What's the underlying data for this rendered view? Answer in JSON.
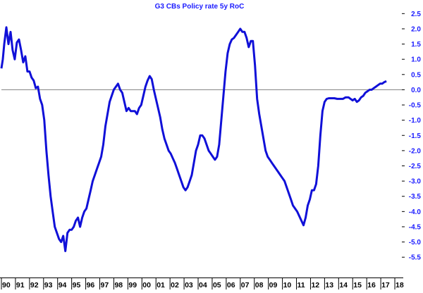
{
  "chart_data": {
    "type": "line",
    "title": "G3 CBs Policy rate 5y RoC",
    "xlabel": "",
    "ylabel": "",
    "xlim": [
      1990,
      2018.5
    ],
    "ylim": [
      -5.75,
      2.6
    ],
    "grid": false,
    "zero_line": true,
    "colors": {
      "line": "#1010d8",
      "title": "#1a1aff",
      "yticks": "#1a1aff",
      "xticks": "#000000",
      "zero_line": "#808080"
    },
    "y_ticks": [
      2.5,
      2.0,
      1.5,
      1.0,
      0.5,
      0.0,
      -0.5,
      -1.0,
      -1.5,
      -2.0,
      -2.5,
      -3.0,
      -3.5,
      -4.0,
      -4.5,
      -5.0,
      -5.5
    ],
    "y_tick_labels": [
      "2.5",
      "2.0",
      "1.5",
      "1.0",
      "0.5",
      "0.0",
      "-0.5",
      "-1.0",
      "-1.5",
      "-2.0",
      "-2.5",
      "-3.0",
      "-3.5",
      "-4.0",
      "-4.5",
      "-5.0",
      "-5.5"
    ],
    "x_ticks": [
      {
        "x": 1990,
        "label": "90"
      },
      {
        "x": 1991,
        "label": "91"
      },
      {
        "x": 1992,
        "label": "92"
      },
      {
        "x": 1993,
        "label": "93"
      },
      {
        "x": 1994,
        "label": "94"
      },
      {
        "x": 1995,
        "label": "95"
      },
      {
        "x": 1996,
        "label": "96"
      },
      {
        "x": 1997,
        "label": "97"
      },
      {
        "x": 1998,
        "label": "98"
      },
      {
        "x": 1999,
        "label": "99"
      },
      {
        "x": 2000,
        "label": "00"
      },
      {
        "x": 2001,
        "label": "01"
      },
      {
        "x": 2002,
        "label": "02"
      },
      {
        "x": 2003,
        "label": "03"
      },
      {
        "x": 2004,
        "label": "04"
      },
      {
        "x": 2005,
        "label": "05"
      },
      {
        "x": 2006,
        "label": "06"
      },
      {
        "x": 2007,
        "label": "07"
      },
      {
        "x": 2008,
        "label": "08"
      },
      {
        "x": 2009,
        "label": "09"
      },
      {
        "x": 2010,
        "label": "10"
      },
      {
        "x": 2011,
        "label": "11"
      },
      {
        "x": 2012,
        "label": "12"
      },
      {
        "x": 2013,
        "label": "13"
      },
      {
        "x": 2014,
        "label": "14"
      },
      {
        "x": 2015,
        "label": "15"
      },
      {
        "x": 2016,
        "label": "16"
      },
      {
        "x": 2017,
        "label": "17"
      },
      {
        "x": 2018,
        "label": "18"
      }
    ],
    "series": [
      {
        "points": [
          [
            1990.0,
            0.7
          ],
          [
            1990.1,
            1.0
          ],
          [
            1990.2,
            1.5
          ],
          [
            1990.35,
            2.05
          ],
          [
            1990.5,
            1.5
          ],
          [
            1990.65,
            1.9
          ],
          [
            1990.8,
            1.3
          ],
          [
            1990.95,
            1.0
          ],
          [
            1991.1,
            1.55
          ],
          [
            1991.25,
            1.65
          ],
          [
            1991.4,
            1.3
          ],
          [
            1991.55,
            0.9
          ],
          [
            1991.7,
            1.1
          ],
          [
            1991.85,
            0.6
          ],
          [
            1992.0,
            0.6
          ],
          [
            1992.15,
            0.4
          ],
          [
            1992.3,
            0.3
          ],
          [
            1992.45,
            0.05
          ],
          [
            1992.6,
            0.1
          ],
          [
            1992.75,
            -0.3
          ],
          [
            1992.9,
            -0.5
          ],
          [
            1993.05,
            -1.0
          ],
          [
            1993.2,
            -2.0
          ],
          [
            1993.35,
            -2.8
          ],
          [
            1993.5,
            -3.5
          ],
          [
            1993.65,
            -4.0
          ],
          [
            1993.8,
            -4.5
          ],
          [
            1993.95,
            -4.7
          ],
          [
            1994.1,
            -4.9
          ],
          [
            1994.25,
            -5.0
          ],
          [
            1994.4,
            -4.8
          ],
          [
            1994.55,
            -5.3
          ],
          [
            1994.7,
            -4.7
          ],
          [
            1994.85,
            -4.6
          ],
          [
            1995.0,
            -4.6
          ],
          [
            1995.15,
            -4.5
          ],
          [
            1995.3,
            -4.3
          ],
          [
            1995.45,
            -4.2
          ],
          [
            1995.6,
            -4.5
          ],
          [
            1995.75,
            -4.2
          ],
          [
            1995.9,
            -4.0
          ],
          [
            1996.05,
            -3.9
          ],
          [
            1996.2,
            -3.6
          ],
          [
            1996.35,
            -3.3
          ],
          [
            1996.5,
            -3.0
          ],
          [
            1996.65,
            -2.8
          ],
          [
            1996.8,
            -2.6
          ],
          [
            1996.95,
            -2.4
          ],
          [
            1997.1,
            -2.2
          ],
          [
            1997.25,
            -1.8
          ],
          [
            1997.4,
            -1.2
          ],
          [
            1997.55,
            -0.8
          ],
          [
            1997.7,
            -0.4
          ],
          [
            1997.85,
            -0.2
          ],
          [
            1998.0,
            0.0
          ],
          [
            1998.15,
            0.1
          ],
          [
            1998.3,
            0.2
          ],
          [
            1998.45,
            0.0
          ],
          [
            1998.6,
            -0.1
          ],
          [
            1998.75,
            -0.4
          ],
          [
            1998.9,
            -0.7
          ],
          [
            1999.05,
            -0.6
          ],
          [
            1999.2,
            -0.7
          ],
          [
            1999.35,
            -0.7
          ],
          [
            1999.5,
            -0.7
          ],
          [
            1999.65,
            -0.8
          ],
          [
            1999.8,
            -0.6
          ],
          [
            1999.95,
            -0.5
          ],
          [
            2000.1,
            -0.2
          ],
          [
            2000.25,
            0.1
          ],
          [
            2000.4,
            0.3
          ],
          [
            2000.55,
            0.45
          ],
          [
            2000.7,
            0.35
          ],
          [
            2000.85,
            0.0
          ],
          [
            2001.0,
            -0.3
          ],
          [
            2001.15,
            -0.6
          ],
          [
            2001.3,
            -0.9
          ],
          [
            2001.45,
            -1.3
          ],
          [
            2001.6,
            -1.6
          ],
          [
            2001.75,
            -1.8
          ],
          [
            2001.9,
            -2.0
          ],
          [
            2002.05,
            -2.1
          ],
          [
            2002.2,
            -2.25
          ],
          [
            2002.35,
            -2.4
          ],
          [
            2002.5,
            -2.6
          ],
          [
            2002.65,
            -2.8
          ],
          [
            2002.8,
            -3.0
          ],
          [
            2002.95,
            -3.2
          ],
          [
            2003.1,
            -3.3
          ],
          [
            2003.25,
            -3.2
          ],
          [
            2003.4,
            -3.0
          ],
          [
            2003.55,
            -2.8
          ],
          [
            2003.7,
            -2.4
          ],
          [
            2003.85,
            -2.0
          ],
          [
            2004.0,
            -1.8
          ],
          [
            2004.15,
            -1.5
          ],
          [
            2004.3,
            -1.5
          ],
          [
            2004.45,
            -1.6
          ],
          [
            2004.6,
            -1.8
          ],
          [
            2004.75,
            -2.0
          ],
          [
            2004.9,
            -2.1
          ],
          [
            2005.05,
            -2.2
          ],
          [
            2005.2,
            -2.3
          ],
          [
            2005.35,
            -2.2
          ],
          [
            2005.5,
            -1.8
          ],
          [
            2005.65,
            -1.0
          ],
          [
            2005.8,
            -0.2
          ],
          [
            2005.95,
            0.6
          ],
          [
            2006.1,
            1.2
          ],
          [
            2006.25,
            1.5
          ],
          [
            2006.4,
            1.65
          ],
          [
            2006.55,
            1.7
          ],
          [
            2006.7,
            1.8
          ],
          [
            2006.85,
            1.9
          ],
          [
            2007.0,
            2.0
          ],
          [
            2007.15,
            1.9
          ],
          [
            2007.3,
            1.9
          ],
          [
            2007.45,
            1.7
          ],
          [
            2007.6,
            1.4
          ],
          [
            2007.75,
            1.6
          ],
          [
            2007.9,
            1.6
          ],
          [
            2008.05,
            0.8
          ],
          [
            2008.2,
            -0.3
          ],
          [
            2008.35,
            -0.8
          ],
          [
            2008.5,
            -1.2
          ],
          [
            2008.65,
            -1.6
          ],
          [
            2008.8,
            -2.0
          ],
          [
            2008.95,
            -2.2
          ],
          [
            2009.1,
            -2.3
          ],
          [
            2009.25,
            -2.4
          ],
          [
            2009.4,
            -2.5
          ],
          [
            2009.55,
            -2.6
          ],
          [
            2009.7,
            -2.7
          ],
          [
            2009.85,
            -2.8
          ],
          [
            2010.0,
            -2.9
          ],
          [
            2010.15,
            -3.0
          ],
          [
            2010.3,
            -3.2
          ],
          [
            2010.45,
            -3.4
          ],
          [
            2010.6,
            -3.6
          ],
          [
            2010.75,
            -3.8
          ],
          [
            2010.9,
            -3.9
          ],
          [
            2011.05,
            -4.0
          ],
          [
            2011.2,
            -4.15
          ],
          [
            2011.35,
            -4.3
          ],
          [
            2011.5,
            -4.45
          ],
          [
            2011.65,
            -4.2
          ],
          [
            2011.8,
            -3.8
          ],
          [
            2011.95,
            -3.6
          ],
          [
            2012.1,
            -3.3
          ],
          [
            2012.25,
            -3.3
          ],
          [
            2012.4,
            -3.1
          ],
          [
            2012.55,
            -2.5
          ],
          [
            2012.7,
            -1.5
          ],
          [
            2012.85,
            -0.7
          ],
          [
            2013.0,
            -0.4
          ],
          [
            2013.15,
            -0.3
          ],
          [
            2013.3,
            -0.28
          ],
          [
            2013.5,
            -0.28
          ],
          [
            2013.7,
            -0.28
          ],
          [
            2013.9,
            -0.3
          ],
          [
            2014.1,
            -0.3
          ],
          [
            2014.3,
            -0.3
          ],
          [
            2014.5,
            -0.25
          ],
          [
            2014.7,
            -0.25
          ],
          [
            2014.85,
            -0.3
          ],
          [
            2015.0,
            -0.35
          ],
          [
            2015.15,
            -0.3
          ],
          [
            2015.3,
            -0.4
          ],
          [
            2015.45,
            -0.35
          ],
          [
            2015.6,
            -0.25
          ],
          [
            2015.75,
            -0.2
          ],
          [
            2015.9,
            -0.1
          ],
          [
            2016.05,
            -0.05
          ],
          [
            2016.2,
            0.0
          ],
          [
            2016.35,
            0.0
          ],
          [
            2016.5,
            0.05
          ],
          [
            2016.65,
            0.1
          ],
          [
            2016.8,
            0.15
          ],
          [
            2016.95,
            0.2
          ],
          [
            2017.1,
            0.2
          ],
          [
            2017.25,
            0.25
          ],
          [
            2017.4,
            0.28
          ]
        ]
      }
    ]
  }
}
